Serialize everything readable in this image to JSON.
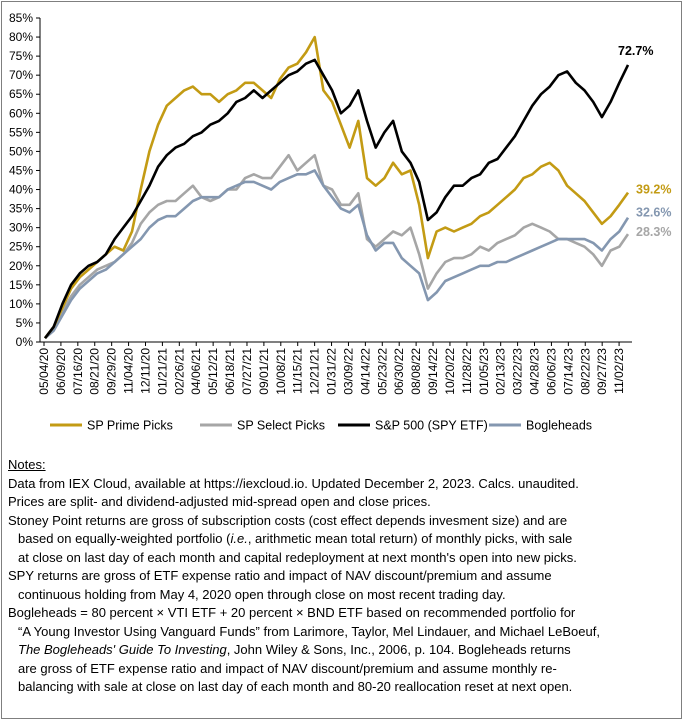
{
  "chart_data": {
    "type": "line",
    "yticks": [
      "0%",
      "5%",
      "10%",
      "15%",
      "20%",
      "25%",
      "30%",
      "35%",
      "40%",
      "45%",
      "50%",
      "55%",
      "60%",
      "65%",
      "70%",
      "75%",
      "80%",
      "85%"
    ],
    "ylim": [
      0,
      85
    ],
    "xticks": [
      "05/04/20",
      "06/09/20",
      "07/16/20",
      "08/21/20",
      "09/29/20",
      "11/04/20",
      "12/11/20",
      "01/21/21",
      "02/26/21",
      "04/06/21",
      "05/12/21",
      "06/18/21",
      "07/27/21",
      "09/01/21",
      "10/08/21",
      "11/15/21",
      "12/21/21",
      "01/31/22",
      "03/09/22",
      "04/14/22",
      "05/23/22",
      "06/30/22",
      "08/08/22",
      "09/14/22",
      "10/20/22",
      "11/28/22",
      "01/05/23",
      "02/13/23",
      "03/22/23",
      "04/28/23",
      "06/06/23",
      "07/14/23",
      "08/22/23",
      "09/27/23",
      "11/02/23"
    ],
    "series": [
      {
        "name": "SP Prime Picks",
        "color": "#c39b14",
        "end_label": "39.2%",
        "values": [
          1,
          4,
          9,
          14,
          17,
          19,
          21,
          23,
          25,
          24,
          29,
          40,
          50,
          57,
          62,
          64,
          66,
          67,
          65,
          65,
          63,
          65,
          66,
          68,
          68,
          66,
          64,
          69,
          72,
          73,
          76,
          80,
          66,
          63,
          57,
          51,
          58,
          43,
          41,
          43,
          47,
          44,
          45,
          36,
          22,
          29,
          30,
          29,
          30,
          31,
          33,
          34,
          36,
          38,
          40,
          43,
          44,
          46,
          47,
          45,
          41,
          39,
          37,
          34,
          31,
          33,
          36,
          39.2
        ]
      },
      {
        "name": "SP Select Picks",
        "color": "#a6a6a6",
        "end_label": "28.3%",
        "values": [
          1,
          4,
          8,
          12,
          15,
          17,
          19,
          20,
          21,
          23,
          26,
          31,
          34,
          36,
          37,
          37,
          39,
          41,
          38,
          37,
          38,
          40,
          40,
          43,
          44,
          43,
          43,
          46,
          49,
          45,
          47,
          49,
          41,
          40,
          36,
          36,
          39,
          27,
          25,
          27,
          29,
          28,
          30,
          23,
          14,
          18,
          21,
          22,
          22,
          23,
          25,
          24,
          26,
          27,
          28,
          30,
          31,
          30,
          29,
          27,
          27,
          26,
          25,
          23,
          20,
          24,
          25,
          28.3
        ]
      },
      {
        "name": "S&P 500 (SPY ETF)",
        "color": "#000000",
        "end_label": "72.7%",
        "values": [
          1,
          4,
          10,
          15,
          18,
          20,
          21,
          23,
          27,
          30,
          33,
          37,
          41,
          46,
          49,
          51,
          52,
          54,
          55,
          57,
          58,
          60,
          63,
          64,
          66,
          64,
          66,
          68,
          70,
          71,
          73,
          74,
          70,
          66,
          60,
          62,
          66,
          58,
          51,
          55,
          58,
          50,
          47,
          42,
          32,
          34,
          38,
          41,
          41,
          43,
          44,
          47,
          48,
          51,
          54,
          58,
          62,
          65,
          67,
          70,
          71,
          68,
          66,
          63,
          59,
          63,
          68,
          72.7
        ]
      },
      {
        "name": "Bogleheads",
        "color": "#8497b0",
        "end_label": "32.6%",
        "values": [
          1,
          3,
          7,
          11,
          14,
          16,
          18,
          19,
          21,
          23,
          25,
          27,
          30,
          32,
          33,
          33,
          35,
          37,
          38,
          38,
          38,
          40,
          41,
          42,
          42,
          41,
          40,
          42,
          43,
          44,
          44,
          45,
          41,
          38,
          35,
          34,
          36,
          28,
          24,
          26,
          26,
          22,
          20,
          18,
          11,
          13,
          16,
          17,
          18,
          19,
          20,
          20,
          21,
          21,
          22,
          23,
          24,
          25,
          26,
          27,
          27,
          27,
          27,
          26,
          24,
          27,
          29,
          32.6
        ]
      }
    ],
    "legend_position": "bottom",
    "grid": false
  },
  "notes": {
    "heading": "Notes:",
    "lines": [
      {
        "text": "Data from IEX Cloud, available at https://iexcloud.io. Updated December 2, 2023. Calcs. unaudited.",
        "indent": false
      },
      {
        "text": "Prices are split- and dividend-adjusted mid-spread open and close prices.",
        "indent": false
      },
      {
        "text": "Stoney Point returns are gross of subscription costs (cost effect depends invesment size) and are",
        "indent": false
      },
      {
        "text_pre": "based on equally-weighted portfolio (",
        "text_ital": "i.e.",
        "text_post": ", arithmetic mean total return) of monthly picks, with sale",
        "indent": true
      },
      {
        "text": "at close on last day of each month and capital redeployment at next month's open into new picks.",
        "indent": true
      },
      {
        "text": "SPY returns are gross of ETF expense ratio and impact of NAV discount/premium and assume",
        "indent": false
      },
      {
        "text": "continuous holding from May 4, 2020 open through close on most recent trading day.",
        "indent": true
      },
      {
        "text": "Bogleheads = 80 percent × VTI ETF + 20 percent × BND ETF based on recommended portfolio for",
        "indent": false
      },
      {
        "text": "“A Young Investor Using Vanguard Funds” from Larimore, Taylor, Mel Lindauer, and Michael LeBoeuf,",
        "indent": true
      },
      {
        "text_pre": "",
        "text_ital": "The Bogleheads' Guide To Investing",
        "text_post": ", John Wiley & Sons, Inc., 2006, p. 104. Bogleheads returns",
        "indent": true
      },
      {
        "text": "are gross of ETF expense ratio and impact of NAV discount/premium and assume monthly re-",
        "indent": true
      },
      {
        "text": "balancing with sale at close on last day of each month and 80-20 reallocation reset at next open.",
        "indent": true
      }
    ]
  }
}
